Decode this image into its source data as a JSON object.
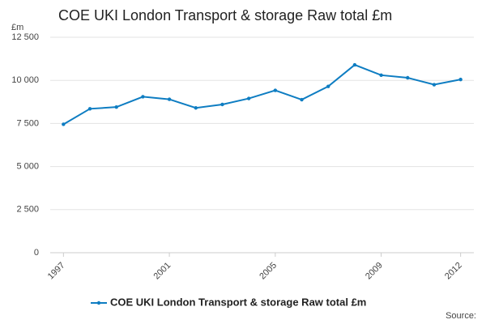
{
  "chart_data": {
    "type": "line",
    "title": "COE UKI London Transport & storage Raw total £m",
    "y_unit": "£m",
    "source": "Source:",
    "x": [
      1997,
      1998,
      1999,
      2000,
      2001,
      2002,
      2003,
      2004,
      2005,
      2006,
      2007,
      2008,
      2009,
      2010,
      2011,
      2012
    ],
    "series": [
      {
        "name": "COE UKI London Transport & storage Raw total £m",
        "color": "#0e7dc2",
        "values": [
          7450,
          8350,
          8450,
          9050,
          8900,
          8400,
          8600,
          8950,
          9420,
          8880,
          9650,
          10900,
          10300,
          10150,
          9750,
          10050
        ]
      }
    ],
    "xlim": [
      1996.5,
      2012.5
    ],
    "xticks": [
      1997,
      2001,
      2005,
      2009,
      2012
    ],
    "ylim": [
      0,
      12500
    ],
    "yticks": [
      0,
      {
        "value": 2500,
        "label": "2 500"
      },
      {
        "value": 5000,
        "label": "5 000"
      },
      {
        "value": 7500,
        "label": "7 500"
      },
      {
        "value": 10000,
        "label": "10 000"
      },
      {
        "value": 12500,
        "label": "12 500"
      }
    ],
    "grid": true
  }
}
